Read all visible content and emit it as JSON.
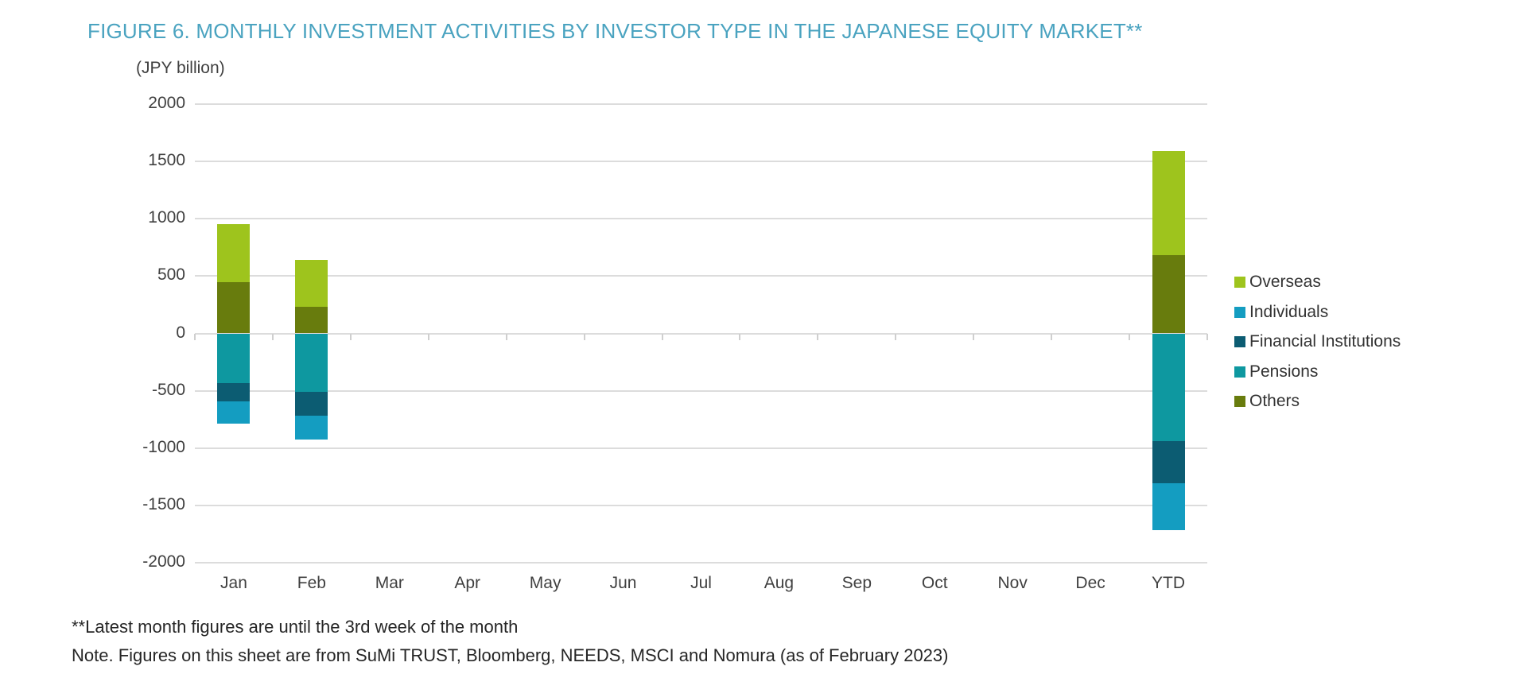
{
  "figure": {
    "title": "FIGURE 6. MONTHLY INVESTMENT ACTIVITIES BY INVESTOR TYPE IN THE JAPANESE EQUITY MARKET**",
    "unit_label": "(JPY billion)",
    "footnotes": [
      "**Latest month figures are until the 3rd week of the month",
      "Note. Figures on this sheet are from SuMi TRUST, Bloomberg, NEEDS, MSCI and Nomura (as of February 2023)"
    ]
  },
  "colors": {
    "title": "#4aa3c0",
    "gridline": "#dcdcdc",
    "axis_text": "#404040",
    "legend_text": "#333333",
    "footnote_text": "#262626"
  },
  "chart_data": {
    "type": "bar",
    "stacked": true,
    "title": "FIGURE 6. MONTHLY INVESTMENT ACTIVITIES BY INVESTOR TYPE IN THE JAPANESE EQUITY MARKET**",
    "xlabel": "",
    "ylabel": "(JPY billion)",
    "ylim": [
      -2000,
      2000
    ],
    "ytick_step": 500,
    "grid": true,
    "legend_position": "right",
    "categories": [
      "Jan",
      "Feb",
      "Mar",
      "Apr",
      "May",
      "Jun",
      "Jul",
      "Aug",
      "Sep",
      "Oct",
      "Nov",
      "Dec",
      "YTD"
    ],
    "series": [
      {
        "name": "Overseas",
        "color": "#9ec41d",
        "values": [
          500,
          410,
          0,
          0,
          0,
          0,
          0,
          0,
          0,
          0,
          0,
          0,
          910
        ]
      },
      {
        "name": "Individuals",
        "color": "#149dc1",
        "values": [
          -195,
          -210,
          0,
          0,
          0,
          0,
          0,
          0,
          0,
          0,
          0,
          0,
          -405
        ]
      },
      {
        "name": "Financial Institutions",
        "color": "#0c5c72",
        "values": [
          -165,
          -205,
          0,
          0,
          0,
          0,
          0,
          0,
          0,
          0,
          0,
          0,
          -370
        ]
      },
      {
        "name": "Pensions",
        "color": "#0e98a0",
        "values": [
          -430,
          -510,
          0,
          0,
          0,
          0,
          0,
          0,
          0,
          0,
          0,
          0,
          -940
        ]
      },
      {
        "name": "Others",
        "color": "#687c0d",
        "values": [
          450,
          230,
          0,
          0,
          0,
          0,
          0,
          0,
          0,
          0,
          0,
          0,
          680
        ]
      }
    ],
    "stack_order": [
      "Others",
      "Overseas",
      "Pensions",
      "Financial Institutions",
      "Individuals"
    ],
    "notes": "Bars only present for Jan, Feb and YTD; Mar-Dec have no data"
  }
}
